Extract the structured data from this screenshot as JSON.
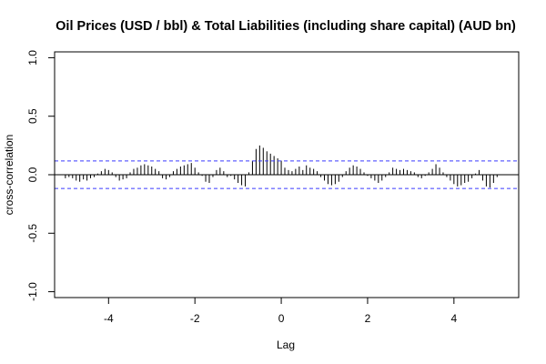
{
  "chart_data": {
    "type": "bar",
    "title": "Oil Prices (USD / bbl) & Total Liabilities (including share capital) (AUD bn)",
    "xlabel": "Lag",
    "ylabel": "cross-correlation",
    "xlim": [
      -5.25,
      5.5
    ],
    "ylim": [
      -1.05,
      1.05
    ],
    "x_ticks": [
      -4,
      -2,
      0,
      2,
      4
    ],
    "y_ticks": [
      -1.0,
      -0.5,
      0.0,
      0.5,
      1.0
    ],
    "x_tick_labels": [
      "-4",
      "-2",
      "0",
      "2",
      "4"
    ],
    "y_tick_labels": [
      "-1.0",
      "-0.5",
      "0.0",
      "0.5",
      "1.0"
    ],
    "confidence_limits": [
      0.118,
      -0.118
    ],
    "colors": {
      "bars": "#000000",
      "confidence": "#3b3bff",
      "zero_line": "#000000"
    },
    "x": [
      -5.0,
      -4.917,
      -4.833,
      -4.75,
      -4.667,
      -4.583,
      -4.5,
      -4.417,
      -4.333,
      -4.25,
      -4.167,
      -4.083,
      -4.0,
      -3.917,
      -3.833,
      -3.75,
      -3.667,
      -3.583,
      -3.5,
      -3.417,
      -3.333,
      -3.25,
      -3.167,
      -3.083,
      -3.0,
      -2.917,
      -2.833,
      -2.75,
      -2.667,
      -2.583,
      -2.5,
      -2.417,
      -2.333,
      -2.25,
      -2.167,
      -2.083,
      -2.0,
      -1.917,
      -1.833,
      -1.75,
      -1.667,
      -1.583,
      -1.5,
      -1.417,
      -1.333,
      -1.25,
      -1.167,
      -1.083,
      -1.0,
      -0.917,
      -0.833,
      -0.75,
      -0.667,
      -0.583,
      -0.5,
      -0.417,
      -0.333,
      -0.25,
      -0.167,
      -0.083,
      0.0,
      0.083,
      0.167,
      0.25,
      0.333,
      0.417,
      0.5,
      0.583,
      0.667,
      0.75,
      0.833,
      0.917,
      1.0,
      1.083,
      1.167,
      1.25,
      1.333,
      1.417,
      1.5,
      1.583,
      1.667,
      1.75,
      1.833,
      1.917,
      2.0,
      2.083,
      2.167,
      2.25,
      2.333,
      2.417,
      2.5,
      2.583,
      2.667,
      2.75,
      2.833,
      2.917,
      3.0,
      3.083,
      3.167,
      3.25,
      3.333,
      3.417,
      3.5,
      3.583,
      3.667,
      3.75,
      3.833,
      3.917,
      4.0,
      4.083,
      4.167,
      4.25,
      4.333,
      4.417,
      4.5,
      4.583,
      4.667,
      4.75,
      4.833,
      4.917,
      5.0
    ],
    "values": [
      -0.03,
      -0.02,
      -0.03,
      -0.05,
      -0.06,
      -0.04,
      -0.05,
      -0.03,
      -0.02,
      0.01,
      0.03,
      0.05,
      0.04,
      0.02,
      -0.02,
      -0.05,
      -0.04,
      -0.03,
      0.02,
      0.05,
      0.06,
      0.08,
      0.09,
      0.08,
      0.07,
      0.05,
      0.03,
      -0.03,
      -0.04,
      -0.02,
      0.03,
      0.05,
      0.07,
      0.08,
      0.09,
      0.1,
      0.06,
      0.02,
      -0.01,
      -0.06,
      -0.07,
      -0.02,
      0.04,
      0.06,
      0.03,
      -0.02,
      -0.01,
      -0.04,
      -0.07,
      -0.09,
      -0.1,
      0.02,
      0.12,
      0.22,
      0.25,
      0.23,
      0.2,
      0.18,
      0.16,
      0.14,
      0.12,
      0.06,
      0.04,
      0.03,
      0.05,
      0.07,
      0.04,
      0.08,
      0.06,
      0.05,
      0.03,
      -0.02,
      -0.05,
      -0.08,
      -0.09,
      -0.08,
      -0.06,
      -0.02,
      0.03,
      0.06,
      0.08,
      0.07,
      0.05,
      0.02,
      -0.01,
      -0.03,
      -0.05,
      -0.07,
      -0.05,
      -0.02,
      0.02,
      0.06,
      0.05,
      0.04,
      0.05,
      0.04,
      0.03,
      0.02,
      -0.02,
      -0.03,
      -0.01,
      0.02,
      0.05,
      0.09,
      0.06,
      0.02,
      -0.02,
      -0.05,
      -0.08,
      -0.1,
      -0.09,
      -0.07,
      -0.06,
      -0.03,
      0.01,
      0.04,
      -0.05,
      -0.1,
      -0.11,
      -0.07,
      -0.02
    ]
  }
}
